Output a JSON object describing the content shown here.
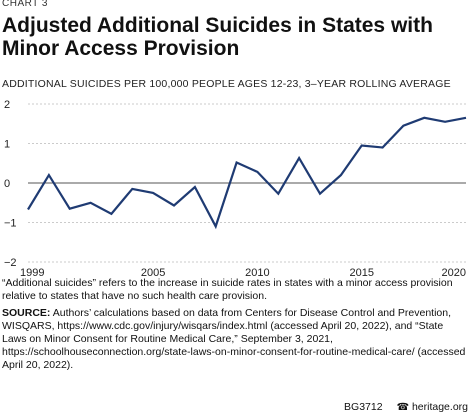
{
  "chart_number": "CHART 3",
  "footer": {
    "code": "BG3712",
    "site": "heritage.org",
    "logo_icon": "bell-icon"
  },
  "notes": {
    "footnote": "“Additional suicides” refers to the increase in suicide rates in states with a minor access provision relative to states that have no such health care provision.",
    "source_label": "SOURCE:",
    "source_text": " Authors’ calculations based on data from Centers for Disease Control and Prevention, WISQARS, https://www.cdc.gov/injury/wisqars/index.html (accessed April 20, 2022), and “State Laws on Minor Consent for Routine Medical Care,” September 3, 2021, https://schoolhouseconnection.org/state-laws-on-minor-consent-for-routine-medical-care/ (accessed April 20, 2022)."
  },
  "chart_data": {
    "type": "line",
    "title": "Adjusted Additional Suicides in States with Minor Access Provision",
    "ylabel": "ADDITIONAL SUICIDES PER 100,000 PEOPLE AGES 12-23, 3–YEAR ROLLING AVERAGE",
    "xlabel": "",
    "xlim": [
      1999,
      2020
    ],
    "ylim": [
      -2,
      2
    ],
    "x_ticks": [
      "1999",
      "2005",
      "2010",
      "2015",
      "2020"
    ],
    "y_ticks": [
      "2",
      "1",
      "0",
      "−1",
      "−2"
    ],
    "zero_line": true,
    "color": "#1f3b73",
    "series": [
      {
        "x": [
          1999,
          2000,
          2001,
          2002,
          2003,
          2004,
          2005,
          2006,
          2007,
          2008,
          2009,
          2010,
          2011,
          2012,
          2013,
          2014,
          2015,
          2016,
          2017,
          2018,
          2019,
          2020
        ],
        "values": [
          -0.67,
          0.2,
          -0.65,
          -0.5,
          -0.78,
          -0.15,
          -0.25,
          -0.57,
          -0.1,
          -1.1,
          0.52,
          0.28,
          -0.27,
          0.63,
          -0.27,
          0.2,
          0.95,
          0.9,
          1.45,
          1.65,
          1.55,
          1.65
        ]
      }
    ]
  }
}
